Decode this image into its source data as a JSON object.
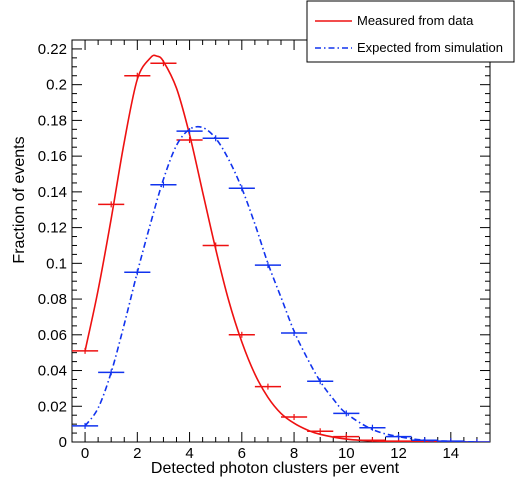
{
  "chart_data": {
    "type": "line",
    "title": "",
    "xlabel": "Detected photon clusters per event",
    "ylabel": "Fraction of events",
    "xlim": [
      -0.5,
      15.5
    ],
    "ylim": [
      0,
      0.225
    ],
    "x_ticks": [
      0,
      2,
      4,
      6,
      8,
      10,
      12,
      14
    ],
    "y_ticks": [
      0,
      0.02,
      0.04,
      0.06,
      0.08,
      0.1,
      0.12,
      0.14,
      0.16,
      0.18,
      0.2,
      0.22
    ],
    "grid": false,
    "legend_position": "top-right",
    "series": [
      {
        "name": "Measured from data",
        "color": "#ee1111",
        "line_style": "solid",
        "x": [
          0,
          1,
          2,
          3,
          4,
          5,
          6,
          7,
          8,
          9,
          10,
          11,
          12,
          13,
          14,
          15
        ],
        "values": [
          0.051,
          0.133,
          0.205,
          0.212,
          0.169,
          0.11,
          0.06,
          0.031,
          0.014,
          0.006,
          0.003,
          0.001,
          0.0005,
          0.0002,
          0.0001,
          0.0
        ],
        "curve_x": [
          0,
          0.5,
          1,
          1.5,
          2,
          2.5,
          2.75,
          3,
          3.5,
          4,
          4.5,
          5,
          5.5,
          6,
          6.5,
          7,
          7.5,
          8,
          8.5,
          9,
          10,
          11,
          12,
          13,
          14,
          15
        ],
        "curve_y": [
          0.051,
          0.085,
          0.125,
          0.168,
          0.203,
          0.215,
          0.216,
          0.213,
          0.198,
          0.172,
          0.14,
          0.108,
          0.079,
          0.056,
          0.038,
          0.025,
          0.016,
          0.0105,
          0.0068,
          0.0043,
          0.0016,
          0.0006,
          0.0002,
          0.0001,
          0.0,
          0.0
        ]
      },
      {
        "name": "Expected from simulation",
        "color": "#1133ee",
        "line_style": "dash-dot",
        "x": [
          0,
          1,
          2,
          3,
          4,
          5,
          6,
          7,
          8,
          9,
          10,
          11,
          12,
          13,
          14,
          15
        ],
        "values": [
          0.009,
          0.039,
          0.095,
          0.144,
          0.174,
          0.17,
          0.142,
          0.099,
          0.061,
          0.034,
          0.016,
          0.008,
          0.003,
          0.001,
          0.0005,
          0.0
        ],
        "curve_x": [
          0,
          0.5,
          1,
          1.5,
          2,
          2.5,
          3,
          3.5,
          4,
          4.5,
          5,
          5.5,
          6,
          6.5,
          7,
          7.5,
          8,
          8.5,
          9,
          9.5,
          10,
          11,
          12,
          13,
          14,
          15
        ],
        "curve_y": [
          0.009,
          0.019,
          0.039,
          0.066,
          0.095,
          0.122,
          0.147,
          0.166,
          0.175,
          0.176,
          0.17,
          0.158,
          0.142,
          0.122,
          0.1,
          0.081,
          0.062,
          0.047,
          0.034,
          0.024,
          0.016,
          0.007,
          0.003,
          0.001,
          0.0004,
          0.0
        ]
      }
    ]
  }
}
